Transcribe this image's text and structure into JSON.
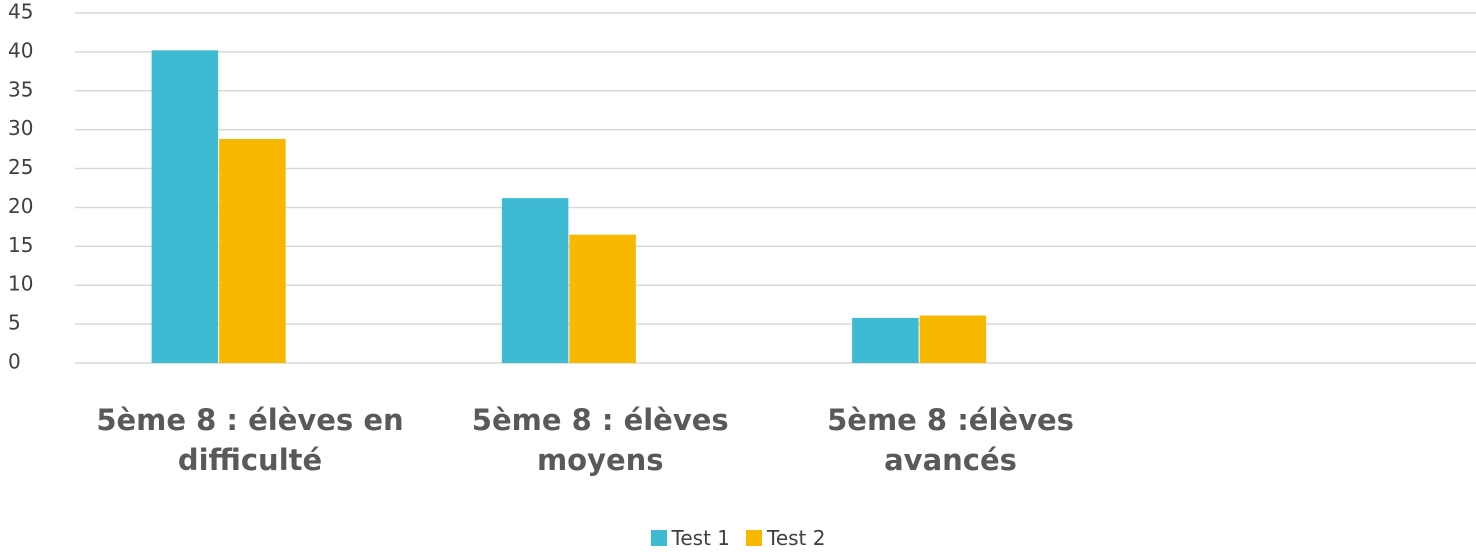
{
  "chart_data": {
    "type": "bar",
    "categories": [
      "5ème 8 : élèves en difficulté",
      "5ème 8 : élèves moyens",
      "5ème 8 :élèves avancés",
      null
    ],
    "series": [
      {
        "name": "Test 1",
        "color": "#3fbad3",
        "values": [
          40.2,
          21.2,
          5.8,
          null
        ]
      },
      {
        "name": "Test 2",
        "color": "#f9b800",
        "values": [
          28.8,
          16.5,
          6.1,
          null
        ]
      }
    ],
    "ylim": [
      0,
      45
    ],
    "yticks": [
      0,
      5,
      10,
      15,
      20,
      25,
      30,
      35,
      40,
      45
    ],
    "grid": true,
    "legend": "bottom"
  }
}
